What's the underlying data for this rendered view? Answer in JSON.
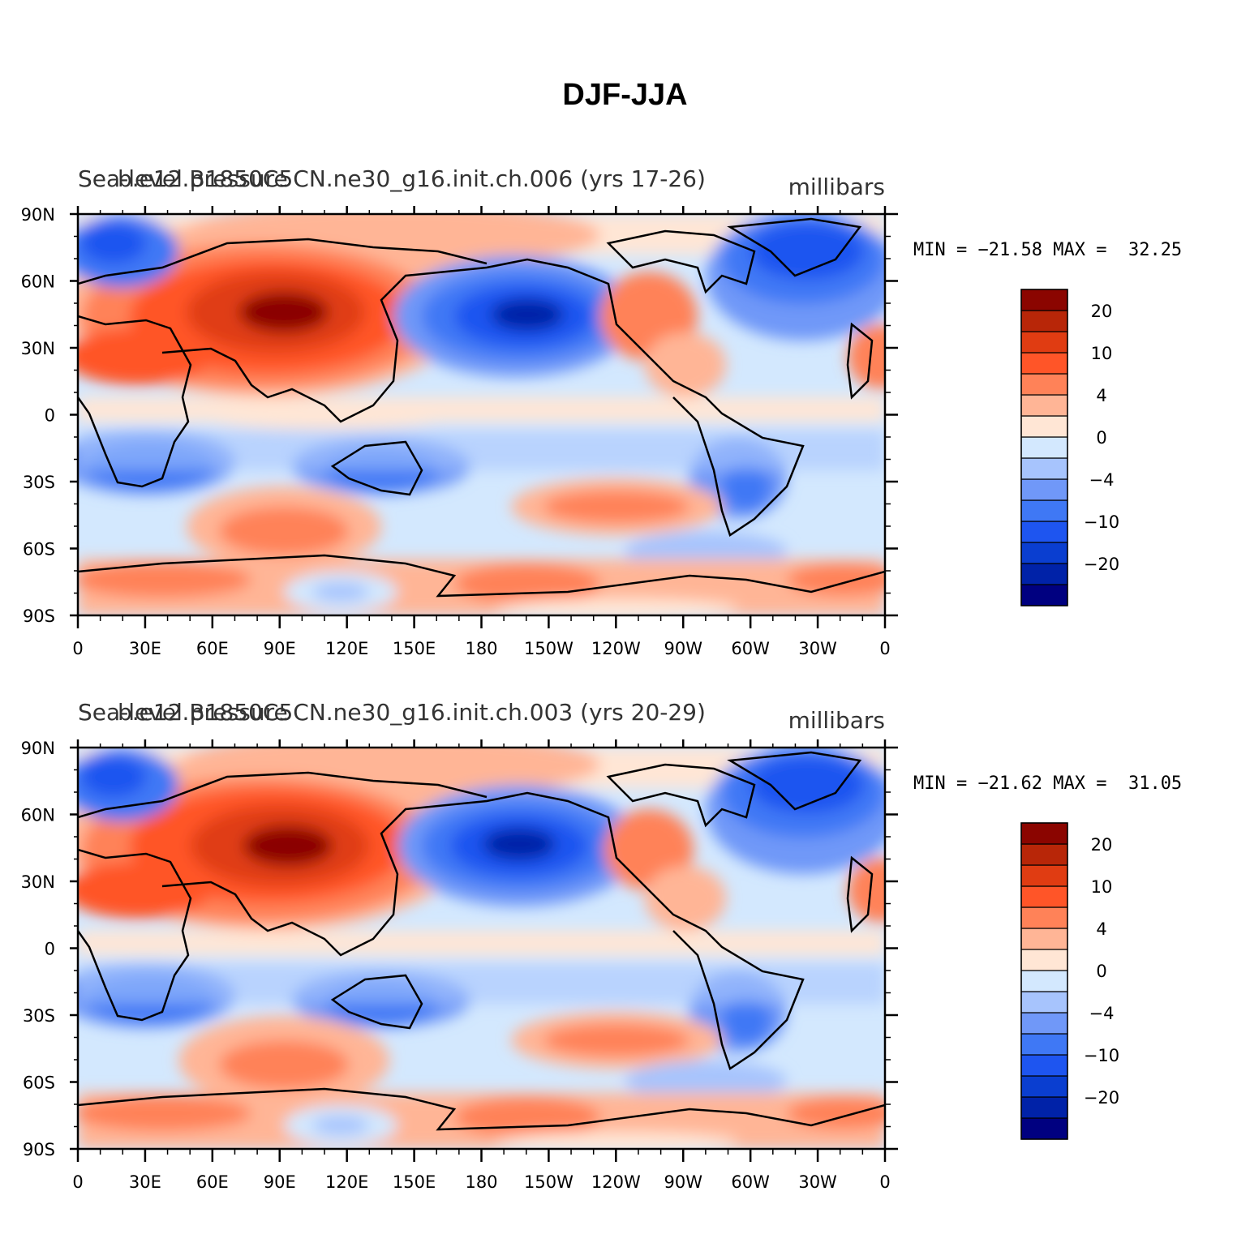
{
  "title": "DJF-JJA",
  "colorbar": {
    "colors": [
      "#000080",
      "#0022a8",
      "#0a3ed0",
      "#1e55f0",
      "#3f78f5",
      "#7098f8",
      "#a7c4fd",
      "#d3e8fe",
      "#ffe6d5",
      "#ffb596",
      "#ff8258",
      "#ff5528",
      "#e03c12",
      "#b82608",
      "#8b0500"
    ],
    "labels": [
      "−20",
      "−10",
      "−4",
      "0",
      "4",
      "10",
      "20"
    ],
    "levels": [
      -25,
      -20,
      -15,
      -10,
      -7,
      -4,
      -2,
      0,
      2,
      4,
      7,
      10,
      15,
      20,
      25
    ]
  },
  "axes": {
    "lat_labels": [
      "90N",
      "60N",
      "30N",
      "0",
      "30S",
      "60S",
      "90S"
    ],
    "lon_labels": [
      "0",
      "30E",
      "60E",
      "90E",
      "120E",
      "150E",
      "180",
      "150W",
      "120W",
      "90W",
      "60W",
      "30W",
      "0"
    ]
  },
  "panels": [
    {
      "left_title": "Sea-level pressure",
      "center_title": "b.e12.B1850C5CN.ne30_g16.init.ch.006 (yrs 17-26)",
      "right_title": "millibars",
      "min_label": "MIN =",
      "min_value": "−21.58",
      "max_label": "MAX =",
      "max_value": "32.25"
    },
    {
      "left_title": "Sea-level pressure",
      "center_title": "b.e12.B1850C5CN.ne30_g16.init.ch.003 (yrs 20-29)",
      "right_title": "millibars",
      "min_label": "MIN =",
      "min_value": "−21.62",
      "max_label": "MAX =",
      "max_value": "31.05"
    }
  ]
}
